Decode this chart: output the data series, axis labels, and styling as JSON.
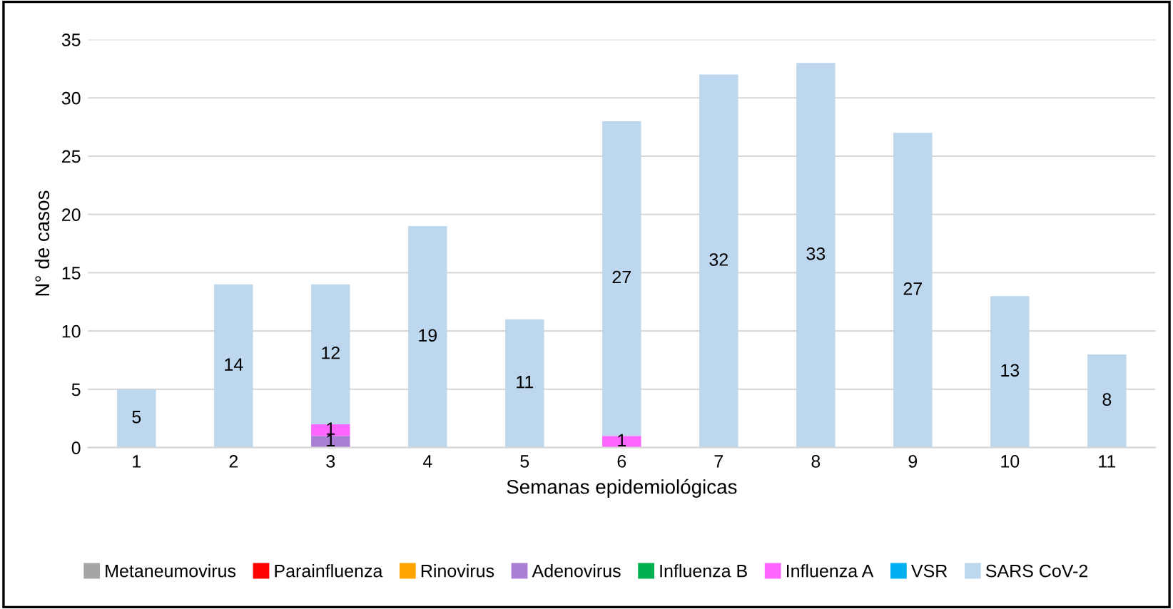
{
  "chart_data": {
    "type": "bar",
    "stacked": true,
    "xlabel": "Semanas epidemiológicas",
    "ylabel": "N° de casos",
    "categories": [
      "1",
      "2",
      "3",
      "4",
      "5",
      "6",
      "7",
      "8",
      "9",
      "10",
      "11"
    ],
    "series": [
      {
        "name": "Metaneumovirus",
        "color": "#a5a5a5",
        "values": [
          null,
          null,
          null,
          null,
          null,
          null,
          null,
          null,
          null,
          null,
          null
        ]
      },
      {
        "name": "Parainfluenza",
        "color": "#ff0000",
        "values": [
          null,
          null,
          null,
          null,
          null,
          null,
          null,
          null,
          null,
          null,
          null
        ]
      },
      {
        "name": "Rinovirus",
        "color": "#ffa500",
        "values": [
          null,
          null,
          null,
          null,
          null,
          null,
          null,
          null,
          null,
          null,
          null
        ]
      },
      {
        "name": "Adenovirus",
        "color": "#a97fd4",
        "values": [
          null,
          null,
          1,
          null,
          null,
          null,
          null,
          null,
          null,
          null,
          null
        ]
      },
      {
        "name": "Influenza B",
        "color": "#00b050",
        "values": [
          null,
          null,
          null,
          null,
          null,
          null,
          null,
          null,
          null,
          null,
          null
        ]
      },
      {
        "name": "Influenza A",
        "color": "#ff66ff",
        "values": [
          null,
          null,
          1,
          null,
          null,
          1,
          null,
          null,
          null,
          null,
          null
        ]
      },
      {
        "name": "VSR",
        "color": "#00b0f0",
        "values": [
          null,
          null,
          null,
          null,
          null,
          null,
          null,
          null,
          null,
          null,
          null
        ]
      },
      {
        "name": "SARS CoV-2",
        "color": "#bdd7ee",
        "values": [
          5,
          14,
          12,
          19,
          11,
          27,
          32,
          33,
          27,
          13,
          8
        ]
      }
    ],
    "ylim": [
      0,
      35
    ],
    "yticks": [
      0,
      5,
      10,
      15,
      20,
      25,
      30,
      35
    ],
    "grid": "y",
    "legend": "bottom",
    "data_labels": true
  }
}
